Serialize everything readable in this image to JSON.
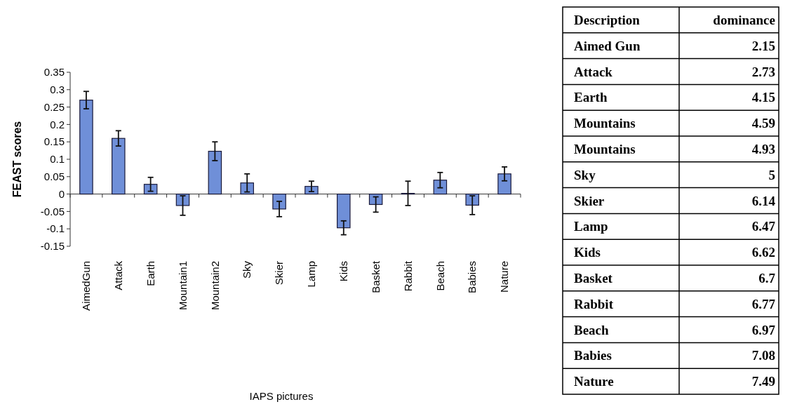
{
  "chart_data": [
    {
      "type": "bar",
      "xlabel": "IAPS pictures",
      "ylabel": "FEAST scores",
      "categories": [
        "AimedGun",
        "Attack",
        "Earth",
        "Mountain1",
        "Mountain2",
        "Sky",
        "Skier",
        "Lamp",
        "Kids",
        "Basket",
        "Rabbit",
        "Beach",
        "Babies",
        "Nature"
      ],
      "values": [
        0.27,
        0.16,
        0.028,
        -0.033,
        0.123,
        0.032,
        -0.043,
        0.022,
        -0.097,
        -0.03,
        0.002,
        0.04,
        -0.032,
        0.058
      ],
      "errors": [
        0.025,
        0.022,
        0.02,
        0.028,
        0.027,
        0.026,
        0.022,
        0.015,
        0.02,
        0.022,
        0.035,
        0.022,
        0.027,
        0.02
      ],
      "color": "#6f8fd8",
      "ylim": [
        -0.15,
        0.35
      ],
      "yticks": [
        {
          "value": -0.15,
          "label": "-0.15"
        },
        {
          "value": -0.1,
          "label": "-0.1"
        },
        {
          "value": -0.05,
          "label": "-0.05"
        },
        0,
        0.05,
        0.1,
        0.15,
        0.2,
        0.25,
        0.3,
        0.35
      ]
    },
    {
      "type": "other",
      "xlabel": "Description",
      "ylabel": "dominance",
      "categories": [
        "Aimed Gun",
        "Attack",
        "Earth",
        "Mountains",
        "Mountains",
        "Sky",
        "Skier",
        "Lamp",
        "Kids",
        "Basket",
        "Rabbit",
        "Beach",
        "Babies",
        "Nature"
      ],
      "values": [
        2.15,
        2.73,
        4.15,
        4.59,
        4.93,
        5,
        6.14,
        6.47,
        6.62,
        6.7,
        6.77,
        6.97,
        7.08,
        7.49
      ],
      "data_labels": true
    }
  ]
}
